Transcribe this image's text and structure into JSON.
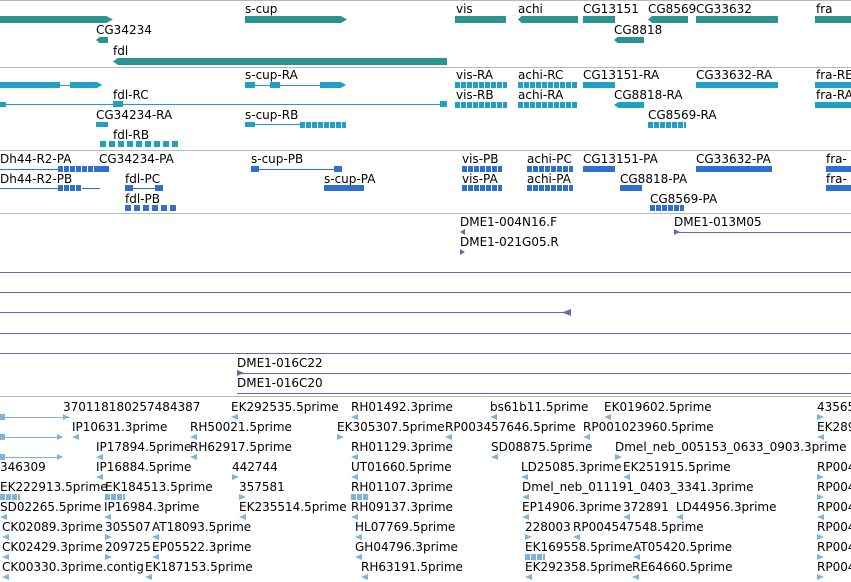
{
  "colors": {
    "gene": "#2a9490",
    "transcript": "#1fa1c4",
    "protein": "#2f6fcf",
    "clone": "#7a5fb0",
    "est": "#7fb3dc",
    "separator": "#b8b8b8"
  },
  "tracks": {
    "genes": [
      {
        "label": "s-cup"
      },
      {
        "label": "vis"
      },
      {
        "label": "achi"
      },
      {
        "label": "CG13151"
      },
      {
        "label": "CG8569"
      },
      {
        "label": "CG33632"
      },
      {
        "label": "fra"
      },
      {
        "label": "CG34234"
      },
      {
        "label": "CG8818"
      },
      {
        "label": "fdl"
      }
    ],
    "transcripts": [
      {
        "label": "s-cup-RA"
      },
      {
        "label": "vis-RA"
      },
      {
        "label": "achi-RC"
      },
      {
        "label": "CG13151-RA"
      },
      {
        "label": "CG33632-RA"
      },
      {
        "label": "fra-RE"
      },
      {
        "label": "fdl-RC"
      },
      {
        "label": "vis-RB"
      },
      {
        "label": "achi-RA"
      },
      {
        "label": "CG8818-RA"
      },
      {
        "label": "fra-RA"
      },
      {
        "label": "CG34234-RA"
      },
      {
        "label": "s-cup-RB"
      },
      {
        "label": "CG8569-RA"
      },
      {
        "label": "fdl-RB"
      }
    ],
    "proteins": [
      {
        "label": "Dh44-R2-PA"
      },
      {
        "label": "CG34234-PA"
      },
      {
        "label": "s-cup-PB"
      },
      {
        "label": "vis-PB"
      },
      {
        "label": "achi-PC"
      },
      {
        "label": "CG13151-PA"
      },
      {
        "label": "CG33632-PA"
      },
      {
        "label": "fra-"
      },
      {
        "label": "Dh44-R2-PB"
      },
      {
        "label": "fdl-PC"
      },
      {
        "label": "s-cup-PA"
      },
      {
        "label": "vis-PA"
      },
      {
        "label": "achi-PA"
      },
      {
        "label": "CG8818-PA"
      },
      {
        "label": "fra-"
      },
      {
        "label": "fdl-PB"
      },
      {
        "label": "CG8569-PA"
      }
    ],
    "clones": [
      {
        "label": "DME1-004N16.F"
      },
      {
        "label": "DME1-013M05"
      },
      {
        "label": "DME1-021G05.R"
      },
      {
        "label": "DME1-016C22"
      },
      {
        "label": "DME1-016C20"
      }
    ],
    "ests": [
      {
        "label": "370118180257484387"
      },
      {
        "label": "EK292535.5prime"
      },
      {
        "label": "RH01492.3prime"
      },
      {
        "label": "bs61b11.5prime"
      },
      {
        "label": "EK019602.5prime"
      },
      {
        "label": "43565"
      },
      {
        "label": "IP10631.3prime"
      },
      {
        "label": "RH50021.5prime"
      },
      {
        "label": "EK305307.5prime"
      },
      {
        "label": "RP003457646.5prime"
      },
      {
        "label": "RP001023960.5prime"
      },
      {
        "label": "EK289"
      },
      {
        "label": "IP17894.5prime"
      },
      {
        "label": "RH62917.5prime"
      },
      {
        "label": "RH01129.3prime"
      },
      {
        "label": "SD08875.5prime"
      },
      {
        "label": "Dmel_neb_005153_0633_0903.3prime"
      },
      {
        "label": "346309"
      },
      {
        "label": "IP16884.5prime"
      },
      {
        "label": "442744"
      },
      {
        "label": "UT01660.5prime"
      },
      {
        "label": "LD25085.3prime"
      },
      {
        "label": "EK251915.5prime"
      },
      {
        "label": "RP004"
      },
      {
        "label": "EK222913.5prime"
      },
      {
        "label": "EK184513.5prime"
      },
      {
        "label": "357581"
      },
      {
        "label": "RH01107.3prime"
      },
      {
        "label": "Dmel_neb_011191_0403_3341.3prime"
      },
      {
        "label": "RP004"
      },
      {
        "label": "SD02265.5prime"
      },
      {
        "label": "IP16984.3prime"
      },
      {
        "label": "EK235514.5prime"
      },
      {
        "label": "RH09137.3prime"
      },
      {
        "label": "EP14906.3prime"
      },
      {
        "label": "372891"
      },
      {
        "label": "LD44956.3prime"
      },
      {
        "label": "RP004"
      },
      {
        "label": "CK02089.3prime"
      },
      {
        "label": "305507"
      },
      {
        "label": "AT18093.5prime"
      },
      {
        "label": "HL07769.5prime"
      },
      {
        "label": "228003"
      },
      {
        "label": "RP004547548.5prime"
      },
      {
        "label": "RP004"
      },
      {
        "label": "CK02429.3prime"
      },
      {
        "label": "209725"
      },
      {
        "label": "EP05522.3prime"
      },
      {
        "label": "GH04796.3prime"
      },
      {
        "label": "EK169558.5prime"
      },
      {
        "label": "AT05420.5prime"
      },
      {
        "label": "RP004"
      },
      {
        "label": "CK00330.3prime.contig"
      },
      {
        "label": "EK187153.5prime"
      },
      {
        "label": "RH63191.5prime"
      },
      {
        "label": "EK292358.5prime"
      },
      {
        "label": "RE64660.5prime"
      },
      {
        "label": "RP004"
      }
    ]
  }
}
